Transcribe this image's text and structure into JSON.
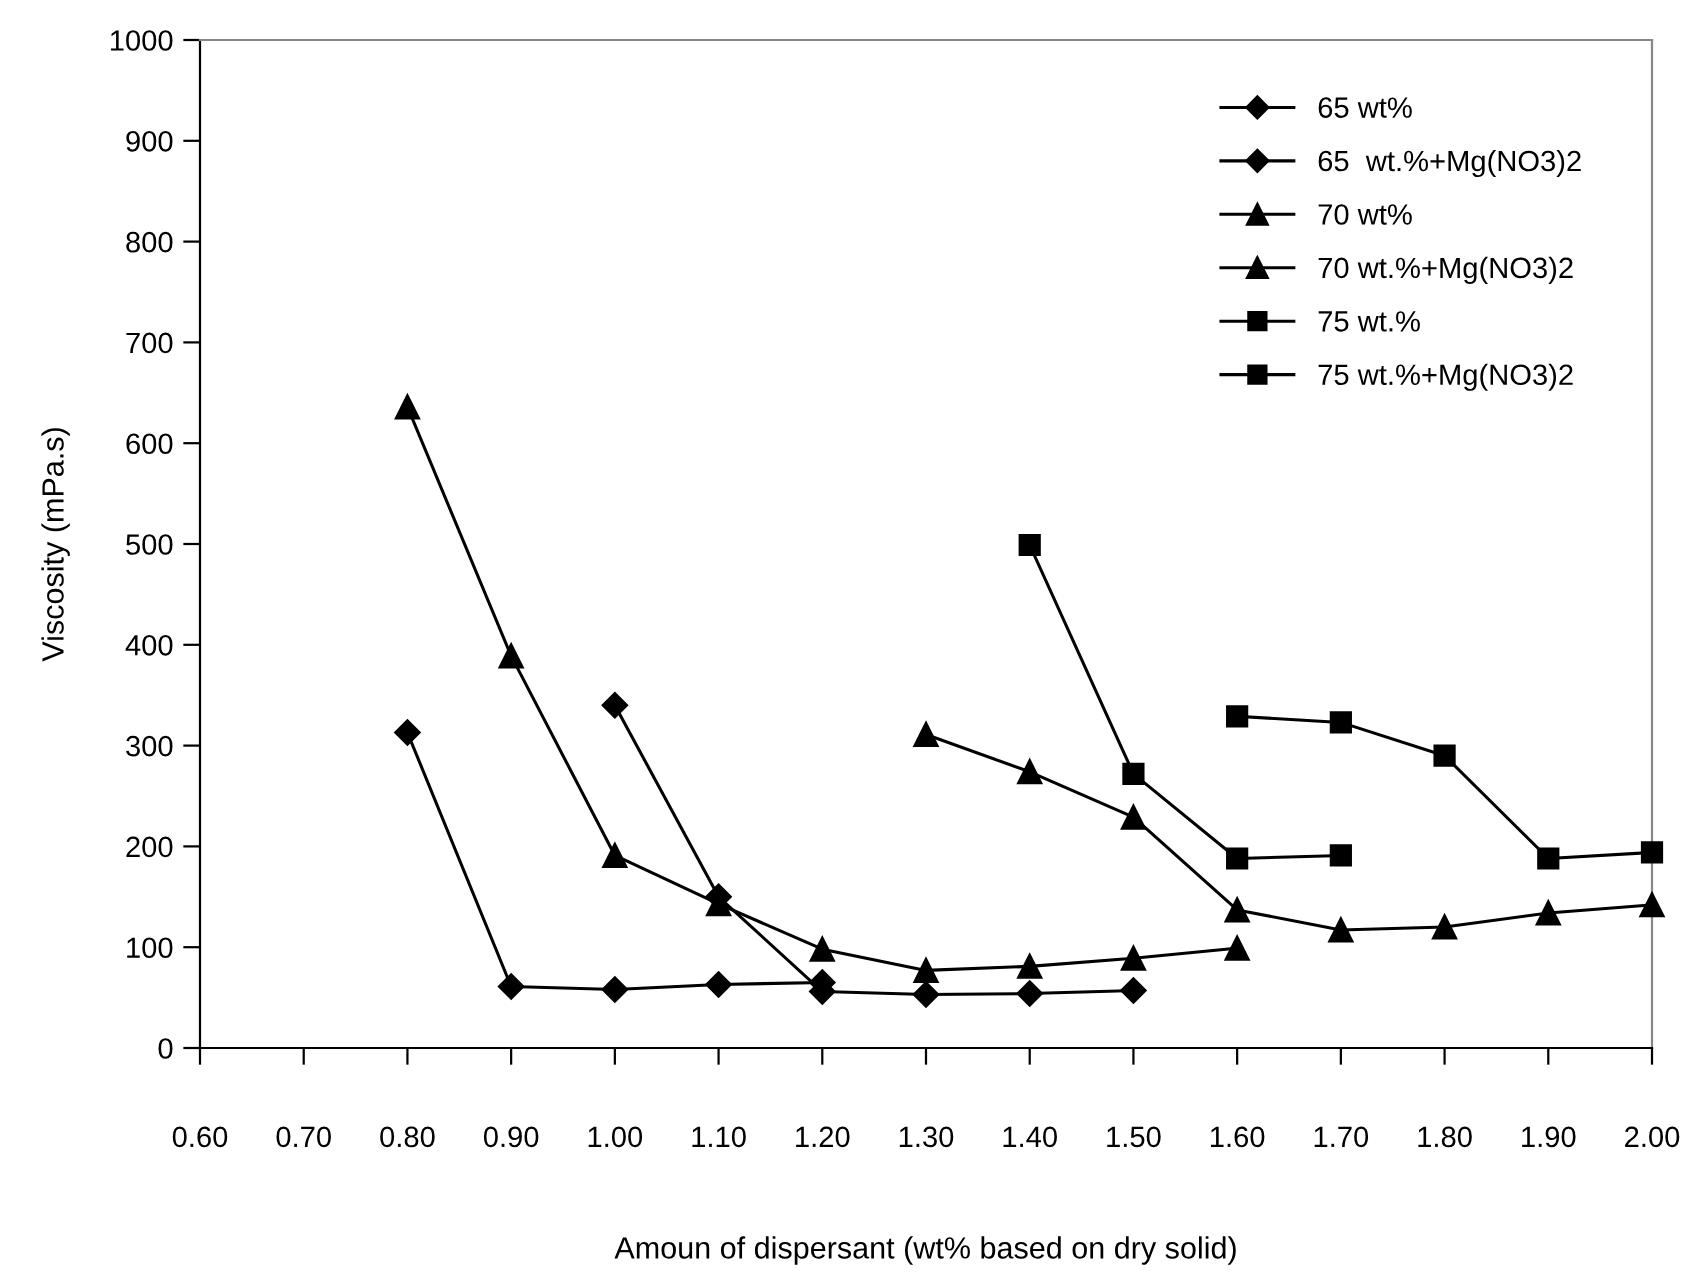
{
  "chart_data": {
    "type": "line",
    "xlabel": "Amoun of dispersant (wt% based on dry solid)",
    "ylabel": "Viscosity (mPa.s)",
    "xlim": [
      0.6,
      2.0
    ],
    "xticks": [
      {
        "value": 0.6,
        "label": "0.60"
      },
      {
        "value": 0.7,
        "label": "0.70"
      },
      {
        "value": 0.8,
        "label": "0.80"
      },
      {
        "value": 0.9,
        "label": "0.90"
      },
      {
        "value": 1.0,
        "label": "1.00"
      },
      {
        "value": 1.1,
        "label": "1.10"
      },
      {
        "value": 1.2,
        "label": "1.20"
      },
      {
        "value": 1.3,
        "label": "1.30"
      },
      {
        "value": 1.4,
        "label": "1.40"
      },
      {
        "value": 1.5,
        "label": "1.50"
      },
      {
        "value": 1.6,
        "label": "1.60"
      },
      {
        "value": 1.7,
        "label": "1.70"
      },
      {
        "value": 1.8,
        "label": "1.80"
      },
      {
        "value": 1.9,
        "label": "1.90"
      },
      {
        "value": 2.0,
        "label": "2.00"
      }
    ],
    "ylim": [
      0,
      1000
    ],
    "yticks": [
      0,
      100,
      200,
      300,
      400,
      500,
      600,
      700,
      800,
      900,
      1000
    ],
    "grid": false,
    "legend": "top right",
    "line_style": "solid",
    "series": [
      {
        "name": "65 wt%",
        "color": "#000000",
        "marker": "diamond",
        "x": [
          0.8,
          0.9,
          1.0,
          1.1,
          1.2
        ],
        "values": [
          313,
          61,
          58,
          63,
          65
        ]
      },
      {
        "name": "65  wt.%+Mg(NO3)2",
        "color": "#000000",
        "marker": "diamond",
        "x": [
          1.0,
          1.1,
          1.2,
          1.3,
          1.4,
          1.5
        ],
        "values": [
          340,
          150,
          56,
          53,
          54,
          57
        ]
      },
      {
        "name": "70 wt%",
        "color": "#000000",
        "marker": "triangle",
        "x": [
          0.8,
          0.9,
          1.0,
          1.1,
          1.2,
          1.3,
          1.4,
          1.5,
          1.6
        ],
        "values": [
          636,
          389,
          191,
          143,
          98,
          77,
          81,
          89,
          99
        ]
      },
      {
        "name": "70 wt.%+Mg(NO3)2",
        "color": "#000000",
        "marker": "triangle",
        "x": [
          1.3,
          1.4,
          1.5,
          1.6,
          1.7,
          1.8,
          1.9,
          2.0
        ],
        "values": [
          311,
          274,
          229,
          137,
          117,
          120,
          134,
          142
        ]
      },
      {
        "name": "75 wt.%",
        "color": "#000000",
        "marker": "square",
        "x": [
          1.4,
          1.5,
          1.6,
          1.7
        ],
        "values": [
          499,
          272,
          188,
          191
        ]
      },
      {
        "name": "75 wt.%+Mg(NO3)2",
        "color": "#000000",
        "marker": "square",
        "x": [
          1.6,
          1.7,
          1.8,
          1.9,
          2.0
        ],
        "values": [
          329,
          323,
          290,
          188,
          194
        ]
      }
    ]
  }
}
